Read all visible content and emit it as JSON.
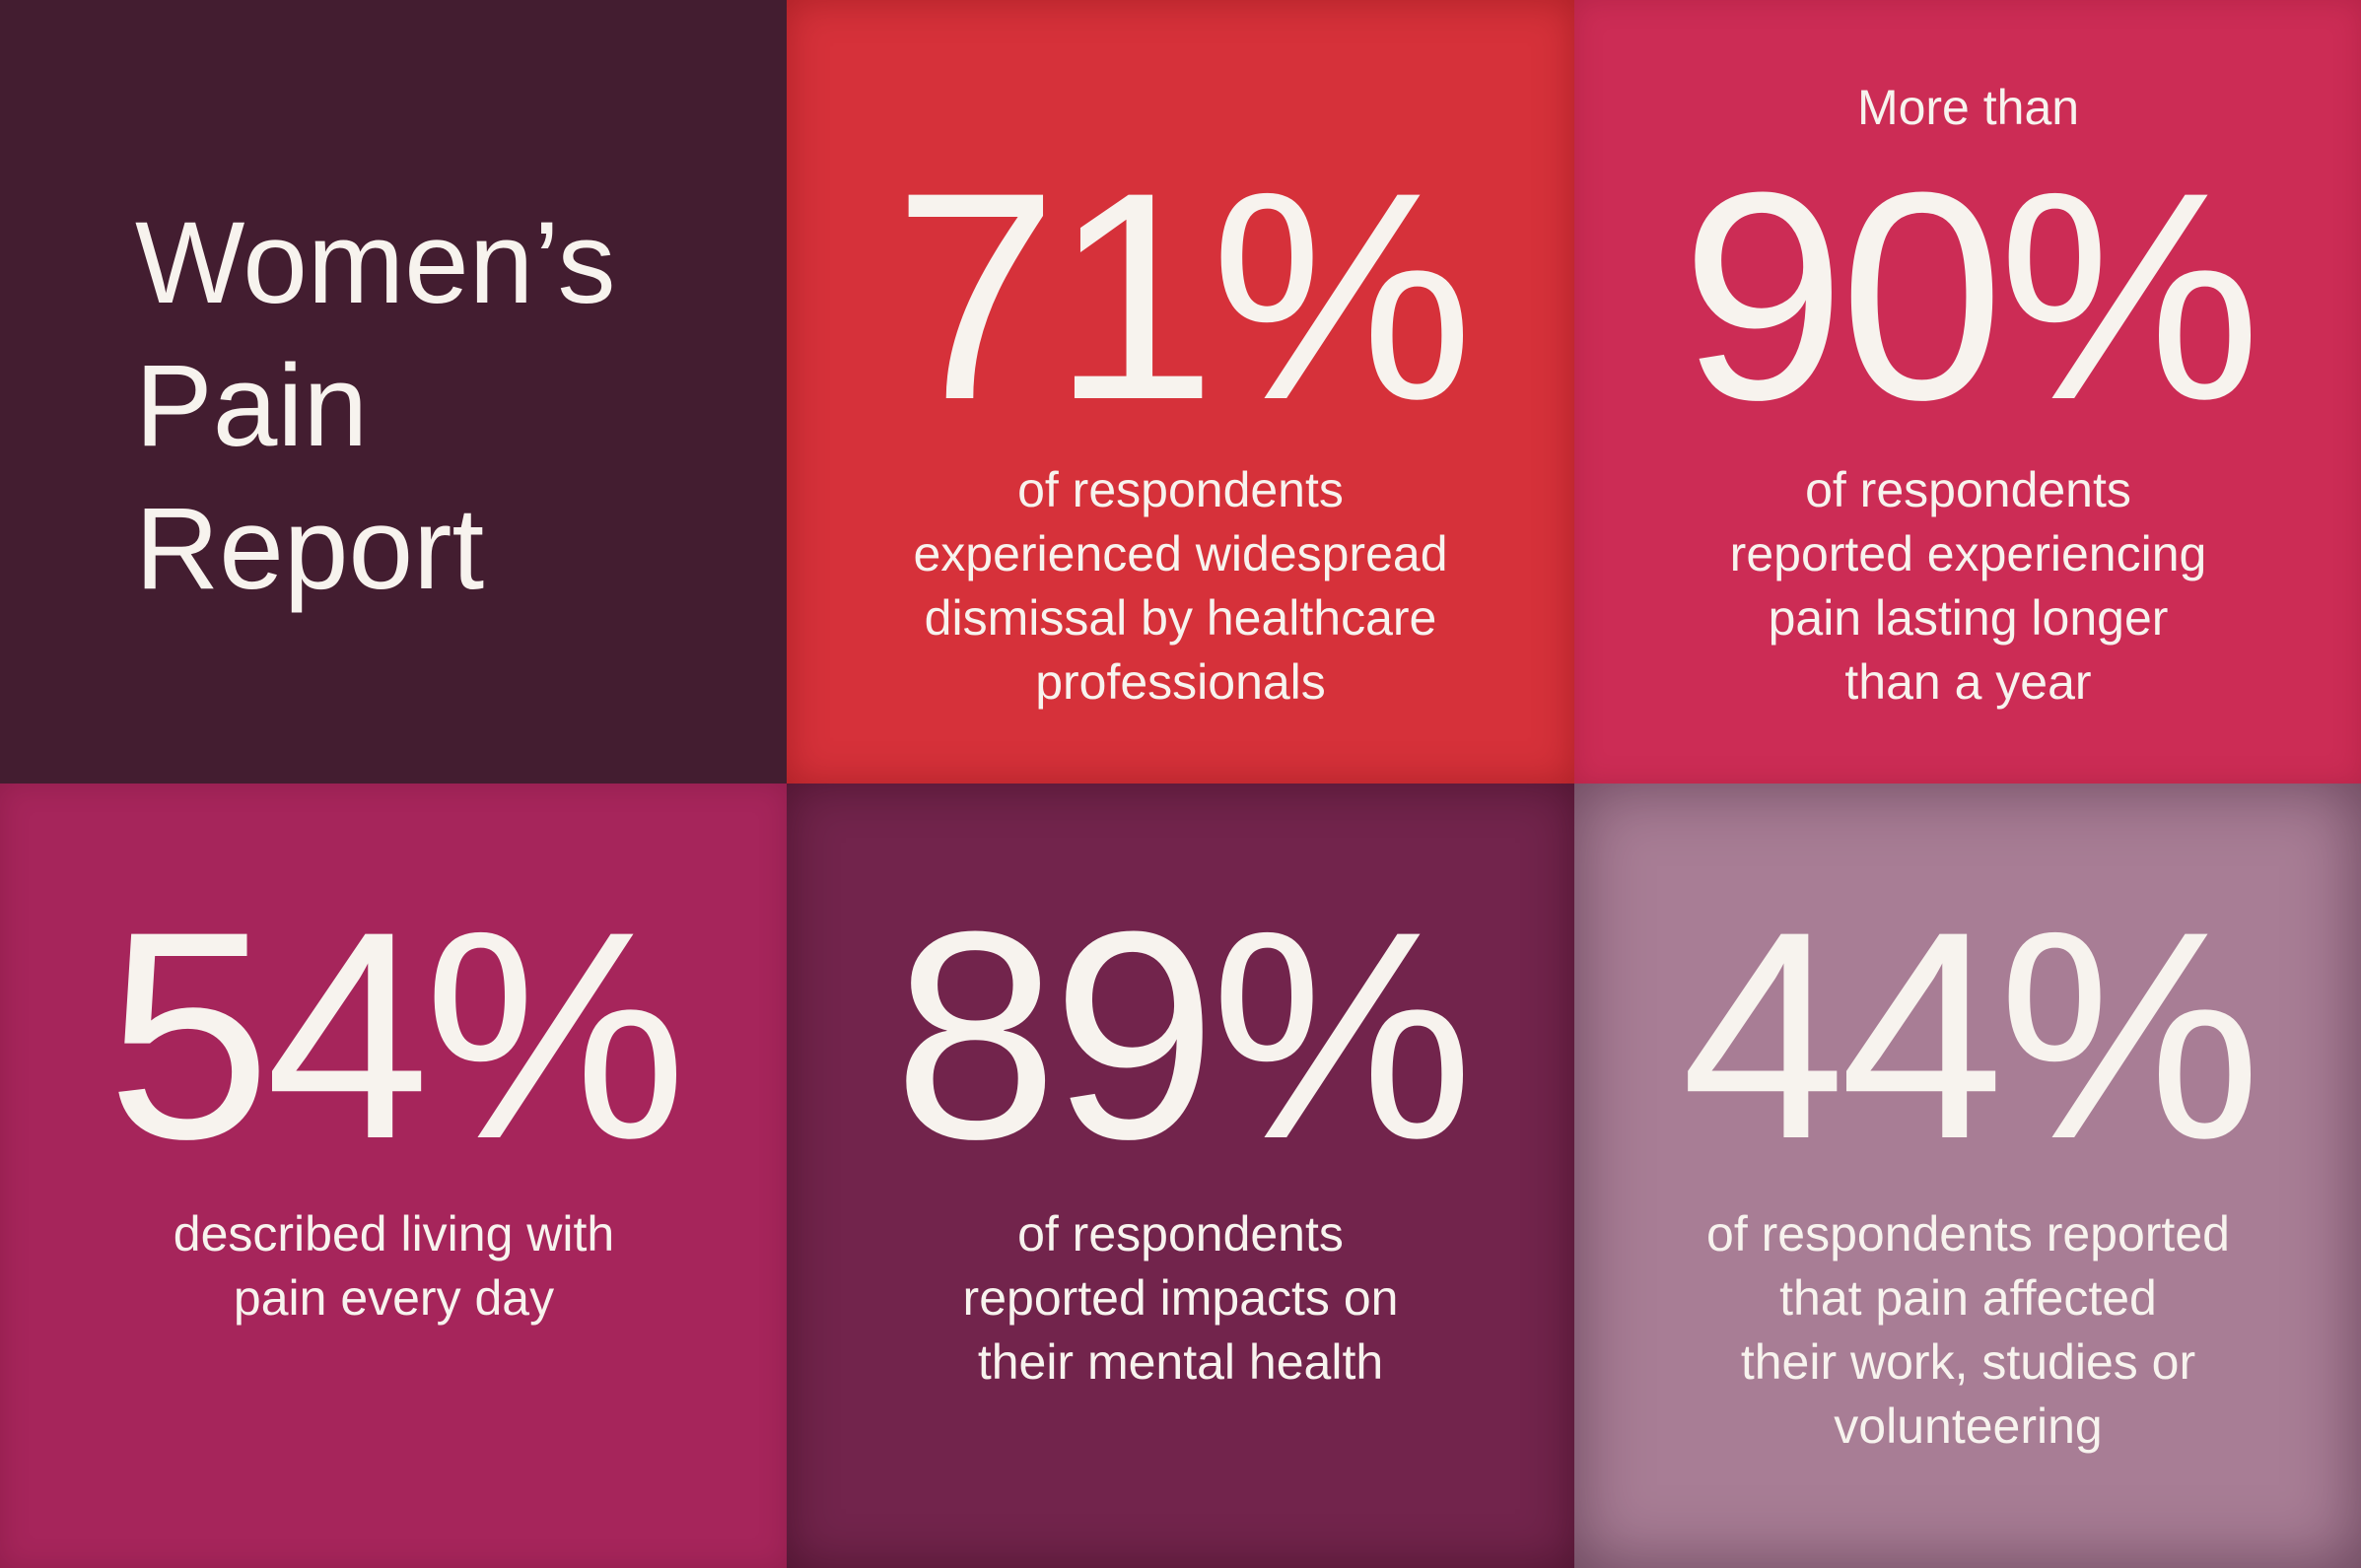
{
  "title": [
    "Women’s",
    "Pain",
    "Report"
  ],
  "tiles": [
    {
      "prefix": null,
      "stat": "71%",
      "description": [
        "of respondents",
        "experienced widespread",
        "dismissal by healthcare",
        "professionals"
      ]
    },
    {
      "prefix": "More than",
      "stat": "90%",
      "description": [
        "of respondents",
        "reported experiencing",
        "pain lasting longer",
        "than a year"
      ]
    },
    {
      "prefix": null,
      "stat": "54%",
      "description": [
        "described living with",
        "pain every day"
      ]
    },
    {
      "prefix": null,
      "stat": "89%",
      "description": [
        "of respondents",
        "reported impacts on",
        "their mental health"
      ]
    },
    {
      "prefix": null,
      "stat": "44%",
      "description": [
        "of respondents reported",
        "that pain affected",
        "their work, studies or",
        "volunteering"
      ]
    }
  ]
}
